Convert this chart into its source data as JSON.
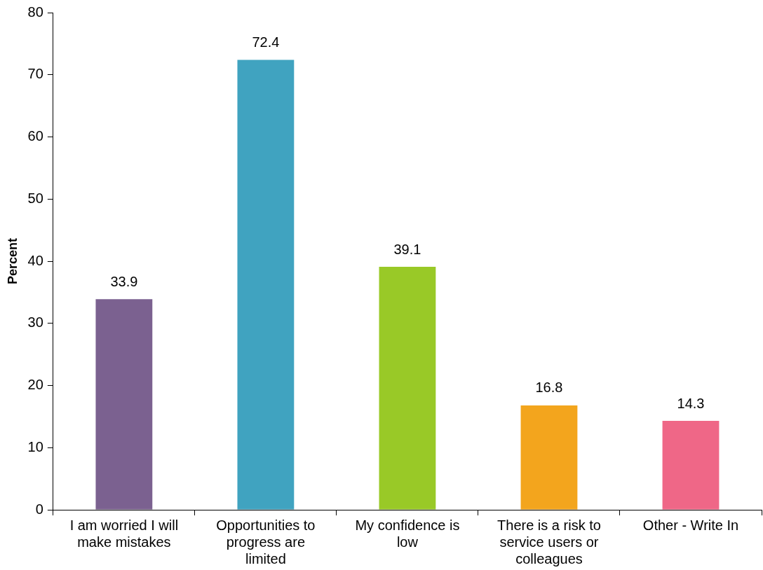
{
  "chart_data": {
    "type": "bar",
    "ylabel": "Percent",
    "categories": [
      "I am worried I will make mistakes",
      "Opportunities to progress are limited",
      "My confidence is low",
      "There is a risk to service users or colleagues",
      "Other - Write In"
    ],
    "values": [
      33.9,
      72.4,
      39.1,
      16.8,
      14.3
    ],
    "colors": [
      "#7b6190",
      "#40a3c0",
      "#99c927",
      "#f3a51d",
      "#ef6787"
    ],
    "ylim": [
      0,
      80
    ],
    "yticks": [
      0,
      10,
      20,
      30,
      40,
      50,
      60,
      70,
      80
    ],
    "grid": false,
    "legend": false,
    "data_labels": true
  }
}
